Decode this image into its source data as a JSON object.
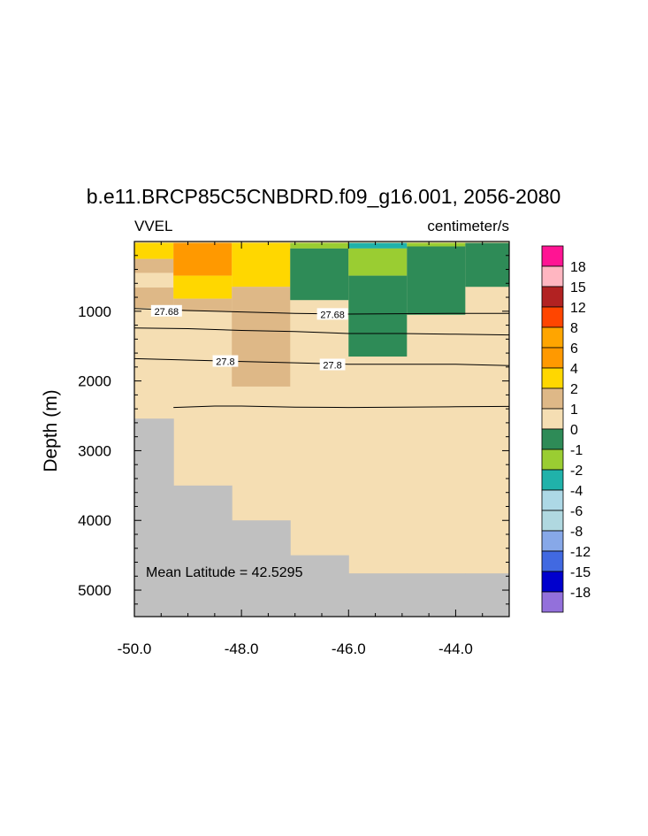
{
  "chart_data": {
    "type": "heatmap",
    "title": "b.e11.BRCP85C5CNBDRD.f09_g16.001, 2056-2080",
    "left_label": "VVEL",
    "right_label": "centimeter/s",
    "ylabel": "Depth (m)",
    "xlabel": "",
    "xlim": [
      -50.0,
      -43.0
    ],
    "ylim": [
      5380,
      0
    ],
    "x_ticks": [
      -50.0,
      -48.0,
      -46.0,
      -44.0
    ],
    "x_tick_labels": [
      "-50.0",
      "-48.0",
      "-46.0",
      "-44.0"
    ],
    "y_ticks": [
      1000,
      2000,
      3000,
      4000,
      5000
    ],
    "y_tick_labels": [
      "1000",
      "2000",
      "3000",
      "4000",
      "5000"
    ],
    "annotation": "Mean Latitude = 42.5295",
    "colorbar": {
      "levels": [
        "18",
        "15",
        "12",
        "8",
        "6",
        "4",
        "2",
        "1",
        "0",
        "-1",
        "-2",
        "-4",
        "-6",
        "-8",
        "-12",
        "-15",
        "-18"
      ],
      "colors": [
        "#ff1493",
        "#ffb6c1",
        "#b22222",
        "#ff4500",
        "#ffa500",
        "#ff9900",
        "#ffd700",
        "#deb887",
        "#f5deb3",
        "#2e8b57",
        "#9acd32",
        "#20b2aa",
        "#add8e6",
        "#b0d8e0",
        "#87a8e8",
        "#4169e1",
        "#0000cd",
        "#9370db"
      ]
    },
    "land_color": "#c0c0c0",
    "columns_x_edges": [
      -50.0,
      -49.27,
      -48.18,
      -47.09,
      -46.0,
      -44.91,
      -43.82,
      -43.0
    ],
    "cells": [
      {
        "x0": -50.0,
        "x1": -49.27,
        "d0": 20,
        "d1": 250,
        "value": 3.0
      },
      {
        "x0": -50.0,
        "x1": -49.27,
        "d0": 250,
        "d1": 450,
        "value": 1.5
      },
      {
        "x0": -50.0,
        "x1": -49.27,
        "d0": 450,
        "d1": 660,
        "value": 0.5
      },
      {
        "x0": -50.0,
        "x1": -49.27,
        "d0": 660,
        "d1": 950,
        "value": 1.5
      },
      {
        "x0": -49.27,
        "x1": -48.18,
        "d0": 20,
        "d1": 490,
        "value": 5.0
      },
      {
        "x0": -49.27,
        "x1": -48.18,
        "d0": 490,
        "d1": 820,
        "value": 3.0
      },
      {
        "x0": -49.27,
        "x1": -48.18,
        "d0": 820,
        "d1": 1000,
        "value": 1.5
      },
      {
        "x0": -48.18,
        "x1": -47.09,
        "d0": 20,
        "d1": 650,
        "value": 3.0
      },
      {
        "x0": -48.18,
        "x1": -47.09,
        "d0": 650,
        "d1": 2080,
        "value": 1.5
      },
      {
        "x0": -47.09,
        "x1": -46.0,
        "d0": 20,
        "d1": 100,
        "value": -1.5
      },
      {
        "x0": -47.09,
        "x1": -46.0,
        "d0": 100,
        "d1": 840,
        "value": -0.5
      },
      {
        "x0": -46.0,
        "x1": -44.91,
        "d0": 20,
        "d1": 100,
        "value": -3.0
      },
      {
        "x0": -46.0,
        "x1": -44.91,
        "d0": 100,
        "d1": 490,
        "value": -1.5
      },
      {
        "x0": -46.0,
        "x1": -44.91,
        "d0": 490,
        "d1": 1650,
        "value": -0.5
      },
      {
        "x0": -44.91,
        "x1": -43.82,
        "d0": 20,
        "d1": 70,
        "value": -1.5
      },
      {
        "x0": -44.91,
        "x1": -43.82,
        "d0": 70,
        "d1": 1050,
        "value": -0.5
      },
      {
        "x0": -43.82,
        "x1": -43.0,
        "d0": 20,
        "d1": 650,
        "value": -0.5
      }
    ],
    "background_value": 0.5,
    "land": [
      {
        "x0": -50.0,
        "x1": -49.27,
        "depth": 2540
      },
      {
        "x0": -49.27,
        "x1": -48.18,
        "depth": 3500
      },
      {
        "x0": -48.18,
        "x1": -47.09,
        "depth": 4000
      },
      {
        "x0": -47.09,
        "x1": -46.0,
        "depth": 4500
      },
      {
        "x0": -46.0,
        "x1": -44.91,
        "depth": 4760
      },
      {
        "x0": -44.91,
        "x1": -43.82,
        "depth": 4760
      },
      {
        "x0": -43.82,
        "x1": -43.0,
        "depth": 4760
      }
    ],
    "contours": [
      {
        "label": "27.68",
        "points": [
          [
            -50.0,
            960
          ],
          [
            -49.0,
            990
          ],
          [
            -48.0,
            1010
          ],
          [
            -47.0,
            1030
          ],
          [
            -46.0,
            1040
          ],
          [
            -45.0,
            1035
          ],
          [
            -44.0,
            1030
          ],
          [
            -43.0,
            1030
          ]
        ],
        "label_positions": [
          [
            -49.4,
            1000
          ],
          [
            -46.3,
            1045
          ]
        ]
      },
      {
        "label": "",
        "points": [
          [
            -50.0,
            1240
          ],
          [
            -49.0,
            1250
          ],
          [
            -48.0,
            1275
          ],
          [
            -47.0,
            1290
          ],
          [
            -46.0,
            1320
          ],
          [
            -45.0,
            1320
          ],
          [
            -44.0,
            1330
          ],
          [
            -43.0,
            1340
          ]
        ],
        "label_positions": []
      },
      {
        "label": "27.8",
        "points": [
          [
            -50.0,
            1680
          ],
          [
            -49.0,
            1700
          ],
          [
            -48.0,
            1720
          ],
          [
            -47.0,
            1740
          ],
          [
            -46.0,
            1760
          ],
          [
            -45.0,
            1760
          ],
          [
            -44.0,
            1760
          ],
          [
            -43.0,
            1780
          ]
        ],
        "label_positions": [
          [
            -48.3,
            1720
          ],
          [
            -46.3,
            1770
          ]
        ]
      },
      {
        "label": "",
        "points": [
          [
            -49.27,
            2380
          ],
          [
            -48.5,
            2360
          ],
          [
            -48.0,
            2360
          ],
          [
            -47.0,
            2375
          ],
          [
            -46.0,
            2380
          ],
          [
            -45.0,
            2375
          ],
          [
            -44.0,
            2370
          ],
          [
            -43.0,
            2365
          ]
        ],
        "label_positions": []
      }
    ]
  }
}
